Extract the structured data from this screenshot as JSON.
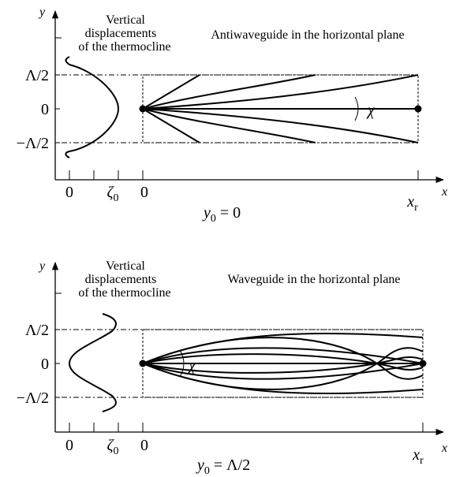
{
  "panels": [
    {
      "axis_y": "y",
      "axis_x": "x",
      "note_line1": "Vertical",
      "note_line2": "displacements",
      "note_line3": "of the thermocline",
      "title": "Antiwaveguide in the horizontal plane",
      "tick_top": "Λ/2",
      "tick_mid": "0",
      "tick_bot": "−Λ/2",
      "zeta_tick0": "0",
      "zeta_tick1": "ζ",
      "zeta_sub": "0",
      "x_tick0": "0",
      "x_r": "x",
      "x_r_sub": "r",
      "angle": "χ",
      "cond_y": "y",
      "cond_sub": "0",
      "cond_rhs": " = 0"
    },
    {
      "axis_y": "y",
      "axis_x": "x",
      "note_line1": "Vertical",
      "note_line2": "displacements",
      "note_line3": "of the thermocline",
      "title": "Waveguide in the horizontal plane",
      "tick_top": "Λ/2",
      "tick_mid": "0",
      "tick_bot": "−Λ/2",
      "zeta_tick0": "0",
      "zeta_tick1": "ζ",
      "zeta_sub": "0",
      "x_tick0": "0",
      "x_r": "x",
      "x_r_sub": "r",
      "angle": "χ",
      "cond_y": "y",
      "cond_sub": "0",
      "cond_rhs": " = Λ/2"
    }
  ]
}
